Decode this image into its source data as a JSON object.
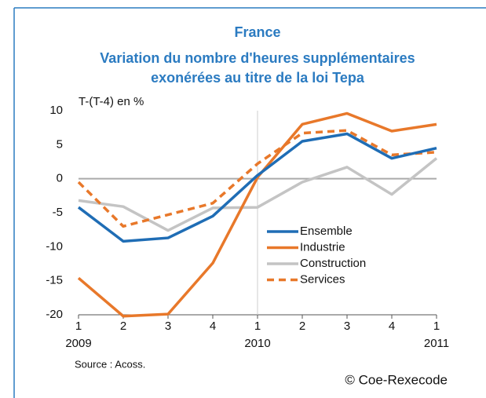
{
  "chart_data": {
    "type": "line",
    "title": "France",
    "subtitle": [
      "Variation du nombre d'heures supplémentaires",
      "exonérées au titre de la loi Tepa"
    ],
    "y_label": "T-(T-4) en %",
    "categories": [
      "1",
      "2",
      "3",
      "4",
      "1",
      "2",
      "3",
      "4",
      "1"
    ],
    "years": [
      "2009",
      null,
      null,
      null,
      "2010",
      null,
      null,
      null,
      "2011"
    ],
    "series": [
      {
        "name": "Ensemble",
        "color": "#1f6db5",
        "dash": false,
        "values": [
          -4.2,
          -9.2,
          -8.7,
          -5.5,
          0.5,
          5.5,
          6.6,
          3.0,
          4.5
        ]
      },
      {
        "name": "Industrie",
        "color": "#e8782a",
        "dash": false,
        "values": [
          -14.6,
          -20.2,
          -19.9,
          -12.4,
          0.2,
          8.0,
          9.6,
          7.0,
          8.0
        ]
      },
      {
        "name": "Construction",
        "color": "#c4c4c4",
        "dash": false,
        "values": [
          -3.2,
          -4.1,
          -7.6,
          -4.3,
          -4.2,
          -0.5,
          1.7,
          -2.3,
          3.0
        ]
      },
      {
        "name": "Services",
        "color": "#e8782a",
        "dash": true,
        "values": [
          -0.5,
          -7.0,
          -5.3,
          -3.6,
          2.2,
          6.7,
          7.1,
          3.5,
          3.9
        ]
      }
    ],
    "ylim": [
      -20,
      10
    ],
    "yticks": [
      10,
      5,
      0,
      -5,
      -10,
      -15,
      -20
    ],
    "source": "Source : Acoss.",
    "credit": "© Coe-Rexecode"
  }
}
